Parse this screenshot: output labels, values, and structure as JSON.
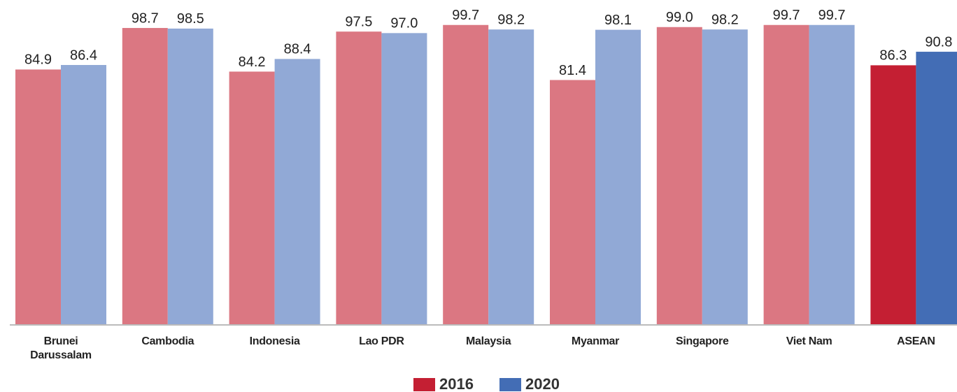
{
  "chart_data": {
    "type": "bar",
    "categories": [
      "Brunei Darussalam",
      "Cambodia",
      "Indonesia",
      "Lao PDR",
      "Malaysia",
      "Myanmar",
      "Singapore",
      "Viet Nam",
      "ASEAN"
    ],
    "series": [
      {
        "name": "2016",
        "color": "#c41f33",
        "colors": [
          "#db7782",
          "#db7782",
          "#db7782",
          "#db7782",
          "#db7782",
          "#db7782",
          "#db7782",
          "#db7782",
          "#c41f33"
        ],
        "values": [
          84.9,
          98.7,
          84.2,
          97.5,
          99.7,
          81.4,
          99.0,
          99.7,
          86.3
        ],
        "value_labels": [
          "84.9",
          "98.7",
          "84.2",
          "97.5",
          "99.7",
          "81.4",
          "99.0",
          "99.7",
          "86.3"
        ]
      },
      {
        "name": "2020",
        "color": "#436db5",
        "colors": [
          "#91a9d6",
          "#91a9d6",
          "#91a9d6",
          "#91a9d6",
          "#91a9d6",
          "#91a9d6",
          "#91a9d6",
          "#91a9d6",
          "#436db5"
        ],
        "values": [
          86.4,
          98.5,
          88.4,
          97.0,
          98.2,
          98.1,
          98.2,
          99.7,
          90.8
        ],
        "value_labels": [
          "86.4",
          "98.5",
          "88.4",
          "97.0",
          "98.2",
          "98.1",
          "98.2",
          "99.7",
          "90.8"
        ]
      }
    ],
    "ylim": [
      0,
      108
    ],
    "legend": "bottom"
  }
}
